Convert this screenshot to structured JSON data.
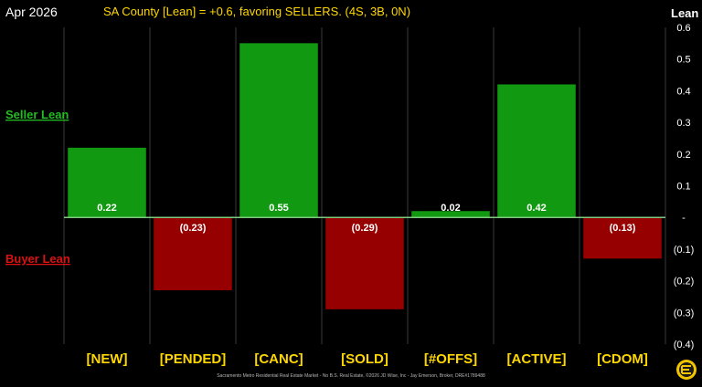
{
  "header": {
    "date": "Apr 2026",
    "title": "SA County [Lean] = +0.6, favoring SELLERS. (4S, 3B, 0N)",
    "axis_title": "Lean"
  },
  "side_labels": {
    "seller": "Seller Lean",
    "buyer": "Buyer Lean"
  },
  "footer": {
    "credit": "Sacramento Metro Residential Real Estate Market - No B.S. Real Estate, ©2026 JD Wise, Inc - Jay Emerson, Broker, DRE#1789488"
  },
  "colors": {
    "background": "#000000",
    "title": "#ffd700",
    "positive_bar": "#119a11",
    "negative_bar": "#970000",
    "category_label": "#ffd700",
    "seller_label": "#22bb22",
    "buyer_label": "#dd1111",
    "zero_line": "#7ec87e",
    "axis_text": "#ffffff",
    "logo_bg": "#f2c400"
  },
  "chart_data": {
    "type": "bar",
    "categories": [
      "[NEW]",
      "[PENDED]",
      "[CANC]",
      "[SOLD]",
      "[#OFFS]",
      "[ACTIVE]",
      "[CDOM]"
    ],
    "values": [
      0.22,
      -0.23,
      0.55,
      -0.29,
      0.02,
      0.42,
      -0.13
    ],
    "data_labels": [
      "0.22",
      "(0.23)",
      "0.55",
      "(0.29)",
      "0.02",
      "0.42",
      "(0.13)"
    ],
    "ylabel": "Lean",
    "ylim": [
      -0.4,
      0.6
    ],
    "yticks": [
      0.6,
      0.5,
      0.4,
      0.3,
      0.2,
      0.1,
      0,
      -0.1,
      -0.2,
      -0.3,
      -0.4
    ],
    "ytick_labels": [
      "0.6",
      "0.5",
      "0.4",
      "0.3",
      "0.2",
      "0.1",
      "-",
      "(0.1)",
      "(0.2)",
      "(0.3)",
      "(0.4)"
    ],
    "grid": "vertical",
    "title": "SA County [Lean] = +0.6, favoring SELLERS. (4S, 3B, 0N)"
  }
}
